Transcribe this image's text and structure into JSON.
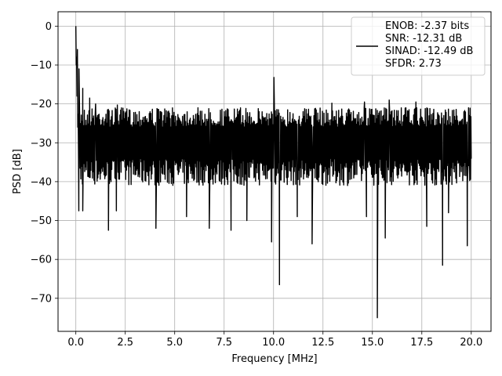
{
  "chart_data": {
    "type": "line",
    "title": "",
    "xlabel": "Frequency [MHz]",
    "ylabel": "PSD [dB]",
    "xlim": [
      -0.9,
      21.0
    ],
    "ylim": [
      -78.5,
      3.7
    ],
    "xticks": [
      0.0,
      2.5,
      5.0,
      7.5,
      10.0,
      12.5,
      15.0,
      17.5,
      20.0
    ],
    "xtick_labels": [
      "0.0",
      "2.5",
      "5.0",
      "7.5",
      "10.0",
      "12.5",
      "15.0",
      "17.5",
      "20.0"
    ],
    "yticks": [
      0,
      -10,
      -20,
      -30,
      -40,
      -50,
      -60,
      -70
    ],
    "ytick_labels": [
      "0",
      "−10",
      "−20",
      "−30",
      "−40",
      "−50",
      "−60",
      "−70"
    ],
    "grid": true,
    "legend_position": "upper-right",
    "series": [
      {
        "name": "ENOB: -2.37 bits\nSNR: -12.31 dB\nSINAD: -12.49 dB\nSFDR: 2.73",
        "color": "#000000",
        "x_range": [
          0.0,
          20.0
        ],
        "points": 1024,
        "noise_floor_band_db": [
          -38,
          -21
        ],
        "peaks": [
          {
            "x": 0.0,
            "y": 0.0
          },
          {
            "x": 0.08,
            "y": -6.0
          },
          {
            "x": 0.16,
            "y": -11.0
          },
          {
            "x": 0.35,
            "y": -16.0
          },
          {
            "x": 0.7,
            "y": -18.5
          },
          {
            "x": 1.0,
            "y": -20.0
          },
          {
            "x": 2.1,
            "y": -20.3
          },
          {
            "x": 10.02,
            "y": -13.2
          },
          {
            "x": 12.95,
            "y": -19.8
          },
          {
            "x": 14.6,
            "y": -19.5
          },
          {
            "x": 15.85,
            "y": -19.0
          },
          {
            "x": 17.2,
            "y": -19.5
          }
        ],
        "dips": [
          {
            "x": 0.15,
            "y": -47.5
          },
          {
            "x": 0.35,
            "y": -47.5
          },
          {
            "x": 1.65,
            "y": -52.5
          },
          {
            "x": 2.05,
            "y": -47.5
          },
          {
            "x": 4.05,
            "y": -52.0
          },
          {
            "x": 5.6,
            "y": -49.0
          },
          {
            "x": 6.75,
            "y": -52.0
          },
          {
            "x": 7.85,
            "y": -52.5
          },
          {
            "x": 8.65,
            "y": -50.0
          },
          {
            "x": 9.9,
            "y": -55.5
          },
          {
            "x": 10.3,
            "y": -66.5
          },
          {
            "x": 11.2,
            "y": -49.0
          },
          {
            "x": 11.95,
            "y": -56.0
          },
          {
            "x": 14.7,
            "y": -49.0
          },
          {
            "x": 15.25,
            "y": -75.0
          },
          {
            "x": 15.65,
            "y": -54.5
          },
          {
            "x": 17.75,
            "y": -51.5
          },
          {
            "x": 18.55,
            "y": -61.5
          },
          {
            "x": 18.85,
            "y": -48.0
          },
          {
            "x": 19.8,
            "y": -56.5
          }
        ]
      }
    ]
  },
  "legend": {
    "lines": [
      "ENOB: -2.37 bits",
      "SNR: -12.31 dB",
      "SINAD: -12.49 dB",
      "SFDR: 2.73"
    ]
  }
}
